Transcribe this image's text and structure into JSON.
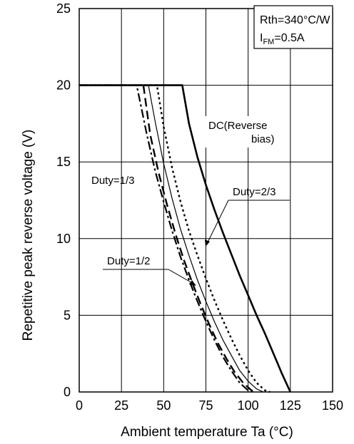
{
  "chart_data": {
    "type": "line",
    "xlabel": "Ambient temperature  Ta  (°C)",
    "ylabel": "Repetitive peak reverse voltage  (V)",
    "xlim": [
      0,
      150
    ],
    "ylim": [
      0,
      25
    ],
    "xticks": [
      0,
      25,
      50,
      75,
      100,
      125,
      150
    ],
    "yticks": [
      0,
      5,
      10,
      15,
      20,
      25
    ],
    "grid": true,
    "legend_box": {
      "line1": "Rth=340°C/W",
      "line2_main": "I",
      "line2_sub": "FM",
      "line2_tail": "=0.5A"
    },
    "series": [
      {
        "name": "DC(Reverse bias)",
        "style": "solid-thick",
        "x": [
          0,
          61,
          65,
          70,
          75,
          80,
          85,
          90,
          95,
          100,
          105,
          110,
          115,
          120,
          125
        ],
        "y": [
          20,
          20,
          17.5,
          15.3,
          13.5,
          11.9,
          10.4,
          9.0,
          7.6,
          6.3,
          5.0,
          3.8,
          2.5,
          1.2,
          0
        ]
      },
      {
        "name": "Duty=2/3",
        "style": "dotted",
        "x": [
          0,
          46,
          50,
          55,
          60,
          65,
          70,
          75,
          80,
          85,
          90,
          95,
          100,
          105,
          110,
          113
        ],
        "y": [
          20,
          20,
          17.3,
          14.6,
          12.4,
          10.5,
          8.9,
          7.4,
          6.0,
          4.7,
          3.5,
          2.4,
          1.4,
          0.6,
          0.1,
          0
        ]
      },
      {
        "name": "Duty=1/2",
        "style": "solid-thin",
        "x": [
          0,
          41,
          45,
          50,
          55,
          60,
          65,
          70,
          75,
          80,
          85,
          90,
          95,
          100,
          105,
          109
        ],
        "y": [
          20,
          20,
          17.6,
          14.9,
          12.6,
          10.6,
          8.9,
          7.3,
          5.9,
          4.6,
          3.4,
          2.4,
          1.4,
          0.7,
          0.2,
          0
        ]
      },
      {
        "name": "Duty=1/3",
        "style": "dash-dot",
        "x": [
          0,
          34,
          40,
          45,
          50,
          55,
          60,
          65,
          70,
          75,
          80,
          85,
          90,
          95,
          100,
          103
        ],
        "y": [
          20,
          20,
          16.8,
          14.4,
          12.4,
          10.5,
          8.8,
          7.3,
          5.9,
          4.6,
          3.4,
          2.3,
          1.4,
          0.6,
          0.1,
          0
        ]
      },
      {
        "name": "",
        "style": "dashed",
        "x": [
          0,
          38,
          42,
          47,
          52,
          57,
          62,
          67,
          72,
          77,
          82,
          87,
          92,
          97,
          102,
          105
        ],
        "y": [
          20,
          20,
          16.8,
          14.3,
          12.2,
          10.3,
          8.6,
          7.1,
          5.7,
          4.4,
          3.2,
          2.2,
          1.3,
          0.6,
          0.1,
          0
        ]
      }
    ],
    "annotations": {
      "dc_line1": "DC(Reverse",
      "dc_line2": "bias)",
      "duty13": "Duty=1/3",
      "duty23": "Duty=2/3",
      "duty12": "Duty=1/2"
    }
  }
}
